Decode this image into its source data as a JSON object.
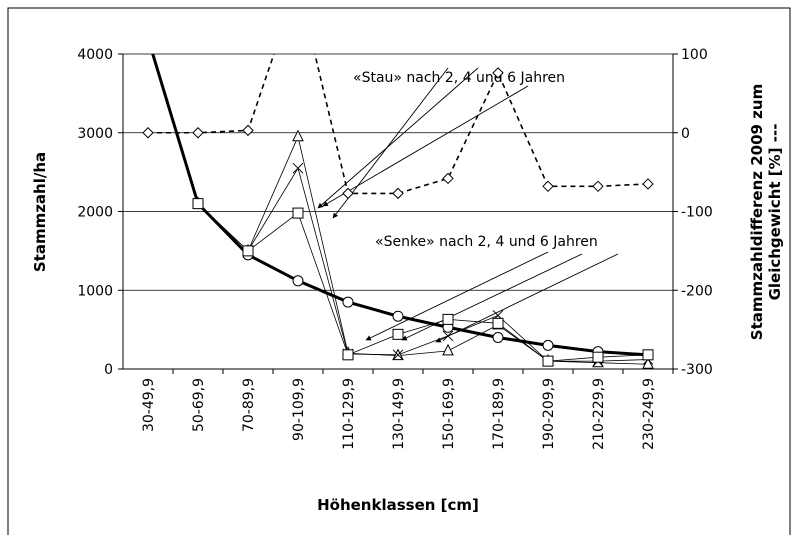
{
  "chart_data": {
    "type": "line",
    "categories": [
      "30-49,9",
      "50-69,9",
      "70-89,9",
      "90-109,9",
      "110-129,9",
      "130-149,9",
      "150-169,9",
      "170-189,9",
      "190-209,9",
      "210-229,9",
      "230-249,9"
    ],
    "series": [
      {
        "color": "#000000",
        "marker": "circle",
        "width": 3,
        "dash": false,
        "axis": "y",
        "values": [
          4200,
          2100,
          1450,
          1120,
          850,
          670,
          530,
          400,
          300,
          220,
          180
        ]
      },
      {
        "color": "#000000",
        "marker": "diamond",
        "width": 1.6,
        "dash": true,
        "axis": "y2",
        "values": [
          0,
          0,
          3,
          190,
          -77,
          -77,
          -58,
          76,
          -68,
          -68,
          -65
        ]
      },
      {
        "color": "#000000",
        "marker": "triangle",
        "width": 0.8,
        "dash": false,
        "axis": "y",
        "values": [
          null,
          2100,
          1500,
          2950,
          200,
          170,
          230,
          560,
          100,
          80,
          60
        ]
      },
      {
        "color": "#000000",
        "marker": "x",
        "width": 0.8,
        "dash": false,
        "axis": "y",
        "values": [
          null,
          2100,
          1500,
          2550,
          190,
          180,
          420,
          680,
          100,
          100,
          120
        ]
      },
      {
        "color": "#000000",
        "marker": "square",
        "width": 0.8,
        "dash": false,
        "axis": "y",
        "values": [
          null,
          2100,
          1500,
          1980,
          180,
          440,
          630,
          580,
          100,
          150,
          180
        ]
      }
    ],
    "ylim": [
      0,
      4000
    ],
    "yticks": [
      0,
      1000,
      2000,
      3000,
      4000
    ],
    "y2lim": [
      -300,
      100
    ],
    "y2ticks": [
      -300,
      -200,
      -100,
      0,
      100
    ],
    "grid": true,
    "xlabel": "Höhenklassen [cm]",
    "ylabel": "Stammzahl/ha",
    "y2label": [
      "Stammzahldifferenz 2009 zum",
      "Gleichgewicht [%] ---"
    ],
    "annotations": [
      "«Stau» nach 2, 4 und 6 Jahren",
      "«Senke» nach 2, 4 und 6 Jahren"
    ]
  }
}
